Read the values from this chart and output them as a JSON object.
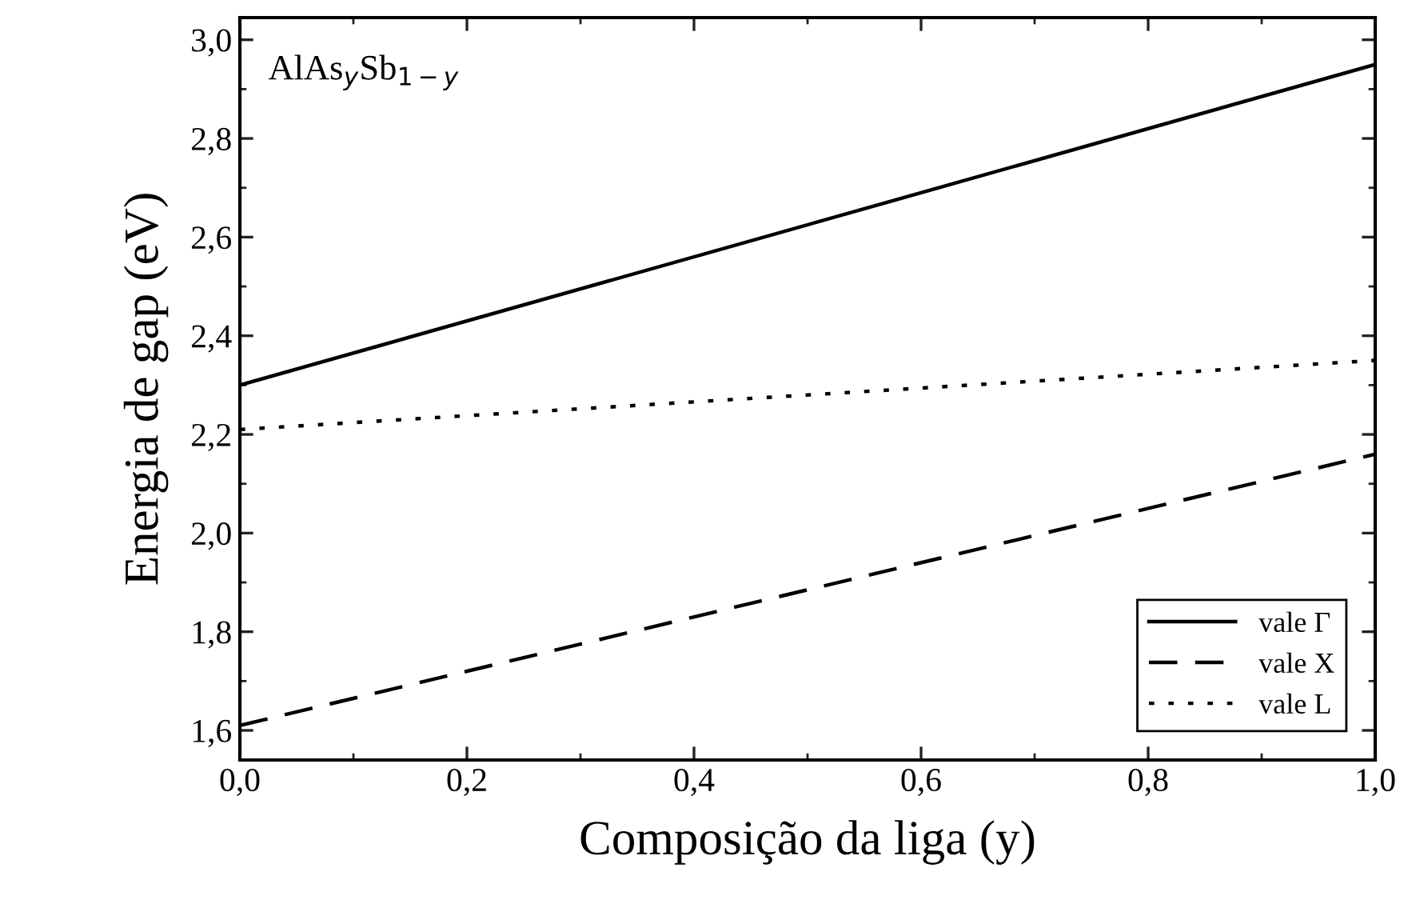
{
  "chart_data": {
    "type": "line",
    "xlabel": "Composição da liga (y)",
    "ylabel": "Energia de gap (eV)",
    "annotations": [
      "AlAs$_{y}$Sb$_{1−y}$"
    ],
    "x": [
      0,
      1
    ],
    "series": [
      {
        "name": "vale Γ",
        "color": "#000000",
        "line_style": "solid",
        "values": [
          2.3,
          2.95
        ]
      },
      {
        "name": "vale X",
        "color": "#000000",
        "line_style": "dashed",
        "values": [
          1.61,
          2.16
        ]
      },
      {
        "name": "vale L",
        "color": "#000000",
        "line_style": "dotted",
        "values": [
          2.21,
          2.35
        ]
      }
    ],
    "xlim": [
      0,
      1
    ],
    "ylim": [
      1.54,
      3.045
    ],
    "xticks": [
      {
        "value": 0,
        "label": "0,0"
      },
      {
        "value": 0.2,
        "label": "0,2"
      },
      {
        "value": 0.4,
        "label": "0,4"
      },
      {
        "value": 0.6,
        "label": "0,6"
      },
      {
        "value": 0.8,
        "label": "0,8"
      },
      {
        "value": 1,
        "label": "1,0"
      }
    ],
    "yticks": [
      {
        "value": 1.6,
        "label": "1,6"
      },
      {
        "value": 1.8,
        "label": "1,8"
      },
      {
        "value": 2.0,
        "label": "2,0"
      },
      {
        "value": 2.2,
        "label": "2,2"
      },
      {
        "value": 2.4,
        "label": "2,4"
      },
      {
        "value": 2.6,
        "label": "2,6"
      },
      {
        "value": 2.8,
        "label": "2,8"
      },
      {
        "value": 3.0,
        "label": "3,0"
      }
    ],
    "grid": false,
    "legend": "bottom right"
  }
}
